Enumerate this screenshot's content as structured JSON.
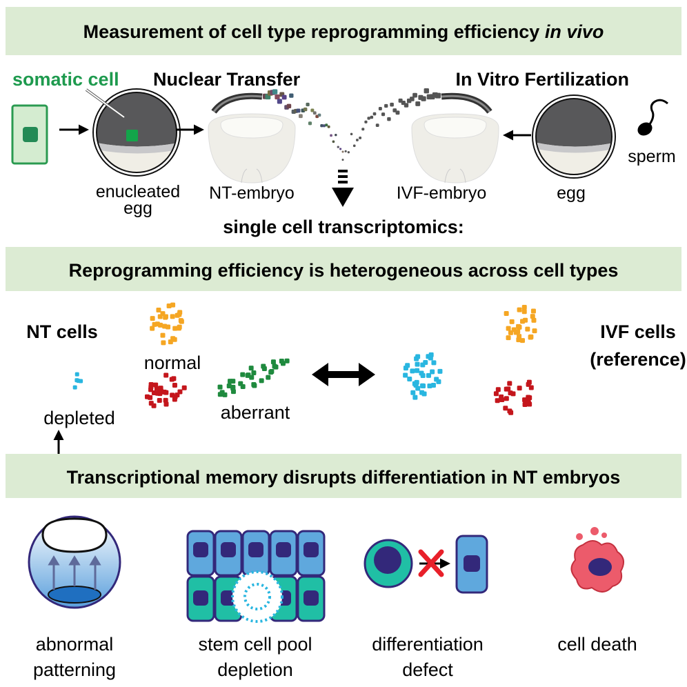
{
  "banner1": {
    "title_main": "Measurement of cell type reprogramming efficiency ",
    "title_italic": "in vivo"
  },
  "top": {
    "somatic_cell": "somatic cell",
    "nuclear_transfer": "Nuclear Transfer",
    "ivf": "In Vitro Fertilization",
    "enucleated": "enucleated",
    "enucleated_egg": "egg",
    "nt_embryo": "NT-embryo",
    "ivf_embryo": "IVF-embryo",
    "egg": "egg",
    "sperm": "sperm",
    "transcriptomics": "single cell transcriptomics:"
  },
  "banner2": {
    "title": "Reprogramming efficiency is heterogeneous across cell types"
  },
  "middle": {
    "nt_cells": "NT cells",
    "normal": "normal",
    "depleted": "depleted",
    "aberrant": "aberrant",
    "ivf_cells": "IVF cells",
    "reference": "(reference)"
  },
  "banner3": {
    "title": "Transcriptional memory disrupts differentiation in NT embryos"
  },
  "bottom": {
    "items": [
      {
        "line1": "abnormal",
        "line2": "patterning"
      },
      {
        "line1": "stem cell pool",
        "line2": "depletion"
      },
      {
        "line1": "differentiation",
        "line2": "defect"
      },
      {
        "line1": "cell death",
        "line2": ""
      }
    ]
  },
  "colors": {
    "banner": "#dcebd3",
    "somatic_green": "#1e9a4e",
    "orange": "#f5a623",
    "red": "#c4161c",
    "green_cluster": "#1f8a3e",
    "cyan": "#29b6e0",
    "stem_teal": "#20bfa5",
    "diff_blue": "#5fa8dd",
    "nucleus": "#33287a",
    "death_red": "#ec5b6b"
  }
}
